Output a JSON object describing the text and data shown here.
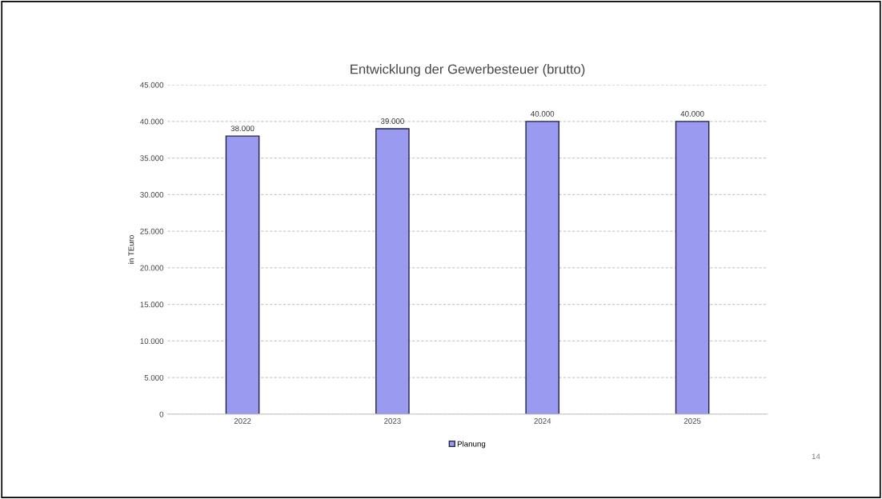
{
  "chart_data": {
    "type": "bar",
    "title": "Entwicklung der Gewerbesteuer (brutto)",
    "ylabel": "in TEuro",
    "categories": [
      "2022",
      "2023",
      "2024",
      "2025"
    ],
    "series": [
      {
        "name": "Planung",
        "color": "#9a9af0",
        "values": [
          38000,
          39000,
          40000,
          40000
        ],
        "value_labels": [
          "38.000",
          "39.000",
          "40.000",
          "40.000"
        ]
      }
    ],
    "ylim": [
      0,
      45000
    ],
    "yticks": [
      {
        "value": 0,
        "label": "0"
      },
      {
        "value": 5000,
        "label": "5.000"
      },
      {
        "value": 10000,
        "label": "10.000"
      },
      {
        "value": 15000,
        "label": "15.000"
      },
      {
        "value": 20000,
        "label": "20.000"
      },
      {
        "value": 25000,
        "label": "25.000"
      },
      {
        "value": 30000,
        "label": "30.000"
      },
      {
        "value": 35000,
        "label": "35.000"
      },
      {
        "value": 40000,
        "label": "40.000"
      },
      {
        "value": 45000,
        "label": "45.000"
      }
    ],
    "grid": "y",
    "legend": "bottom",
    "annotations": [
      "14"
    ]
  }
}
